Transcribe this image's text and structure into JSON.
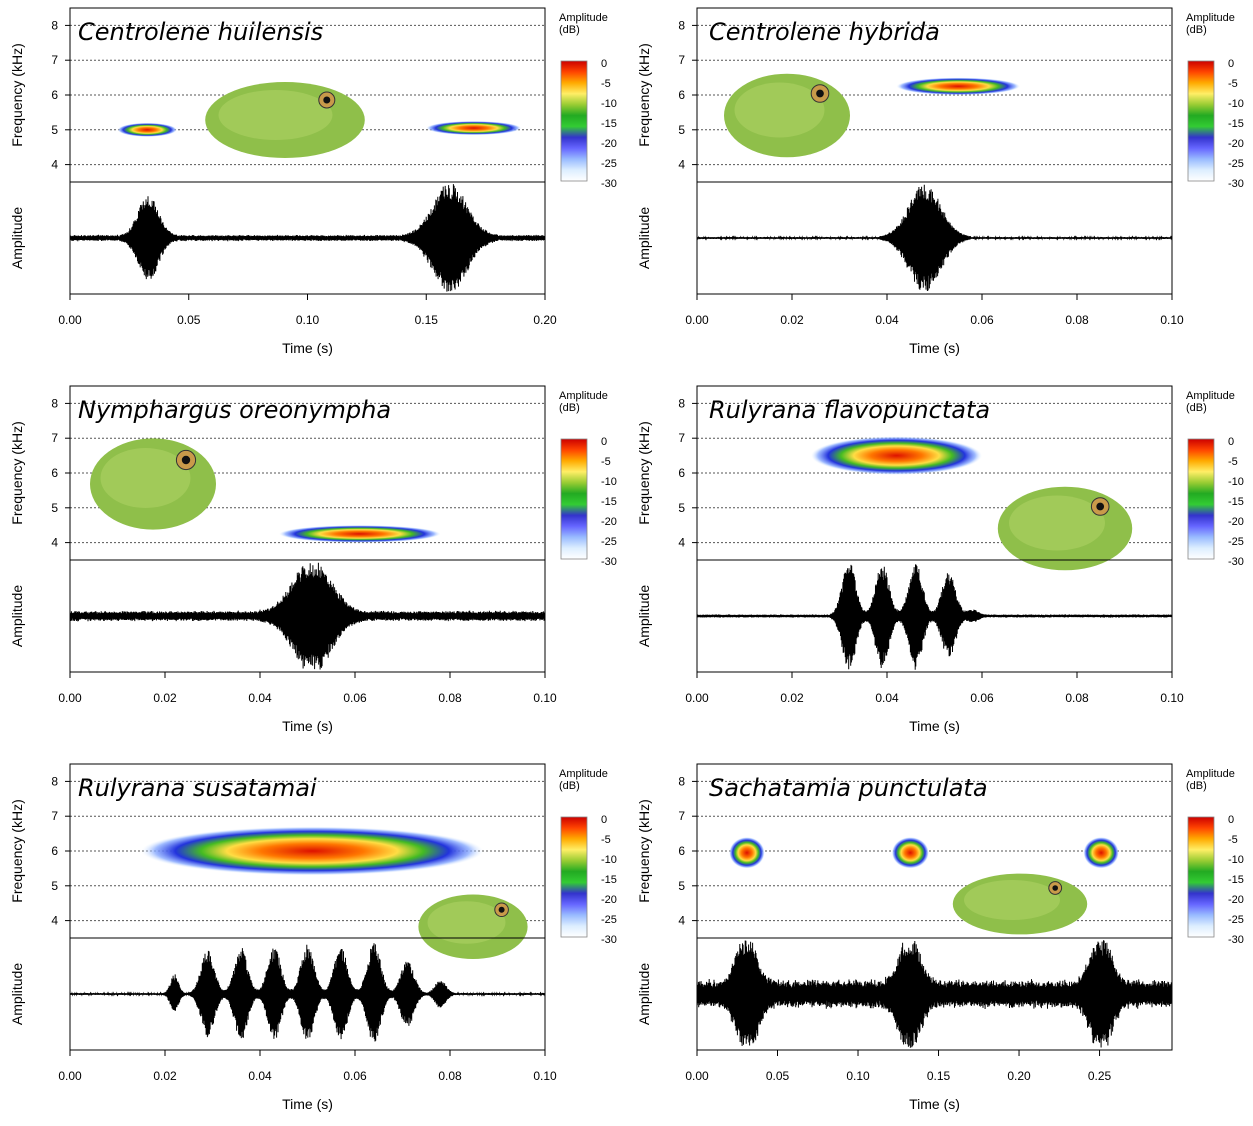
{
  "colorbar": {
    "title_line1": "Amplitude",
    "title_line2": "(dB)",
    "ticks": [
      "0",
      "-5",
      "-10",
      "-15",
      "-20",
      "-25",
      "-30"
    ],
    "colors": [
      "#cc0000",
      "#ff4400",
      "#ffaa00",
      "#ffee66",
      "#99cc33",
      "#22aa22",
      "#33cc33",
      "#3333cc",
      "#6666ff",
      "#99bbff",
      "#ddeeff",
      "#ffffff"
    ]
  },
  "axis_labels": {
    "frequency": "Frequency (kHz)",
    "amplitude": "Amplitude",
    "time": "Time (s)"
  },
  "chart_data": [
    {
      "type": "spectrogram",
      "title": "Centrolene huilensis",
      "title_color": "#000000",
      "ylim": [
        3.5,
        8.5
      ],
      "yticks": [
        "4",
        "5",
        "6",
        "7",
        "8"
      ],
      "xlim": [
        0,
        0.2
      ],
      "xticks": [
        "0.00",
        "0.05",
        "0.10",
        "0.15",
        "0.20"
      ],
      "calls": [
        {
          "t_start": 0.02,
          "t_end": 0.045,
          "freq_khz": 5.0,
          "bandwidth_khz": 0.4
        },
        {
          "t_start": 0.15,
          "t_end": 0.19,
          "freq_khz": 5.05,
          "bandwidth_khz": 0.4
        }
      ],
      "waveform_pulses": [
        {
          "t_center": 0.033,
          "duration": 0.015,
          "relative_amplitude": 0.75
        },
        {
          "t_center": 0.16,
          "duration": 0.025,
          "relative_amplitude": 1.0
        }
      ],
      "noise_level": 0.06,
      "photo": "frog-photo"
    },
    {
      "type": "spectrogram",
      "title": "Centrolene hybrida",
      "title_color": "#000000",
      "ylim": [
        3.5,
        8.5
      ],
      "yticks": [
        "4",
        "5",
        "6",
        "7",
        "8"
      ],
      "xlim": [
        0,
        0.1
      ],
      "xticks": [
        "0.00",
        "0.02",
        "0.04",
        "0.06",
        "0.08",
        "0.10"
      ],
      "calls": [
        {
          "t_start": 0.042,
          "t_end": 0.068,
          "freq_khz": 6.25,
          "bandwidth_khz": 0.5
        }
      ],
      "waveform_pulses": [
        {
          "t_center": 0.048,
          "duration": 0.012,
          "relative_amplitude": 1.0
        }
      ],
      "noise_level": 0.02,
      "photo": "frog-photo"
    },
    {
      "type": "spectrogram",
      "title": "Nymphargus oreonympha",
      "title_color": "#000000",
      "ylim": [
        3.5,
        8.5
      ],
      "yticks": [
        "4",
        "5",
        "6",
        "7",
        "8"
      ],
      "xlim": [
        0,
        0.1
      ],
      "xticks": [
        "0.00",
        "0.02",
        "0.04",
        "0.06",
        "0.08",
        "0.10"
      ],
      "calls": [
        {
          "t_start": 0.044,
          "t_end": 0.078,
          "freq_khz": 4.25,
          "bandwidth_khz": 0.5
        }
      ],
      "waveform_pulses": [
        {
          "t_center": 0.051,
          "duration": 0.014,
          "relative_amplitude": 1.0
        }
      ],
      "noise_level": 0.1,
      "photo": "frog-photo"
    },
    {
      "type": "spectrogram",
      "title": "Rulyrana flavopunctata",
      "title_color": "#000000",
      "ylim": [
        3.5,
        8.5
      ],
      "yticks": [
        "4",
        "5",
        "6",
        "7",
        "8"
      ],
      "xlim": [
        0,
        0.1
      ],
      "xticks": [
        "0.00",
        "0.02",
        "0.04",
        "0.06",
        "0.08",
        "0.10"
      ],
      "calls": [
        {
          "t_start": 0.024,
          "t_end": 0.06,
          "freq_khz": 6.5,
          "bandwidth_khz": 1.1
        }
      ],
      "waveform_pulses": [
        {
          "t_center": 0.032,
          "duration": 0.005,
          "relative_amplitude": 1.0
        },
        {
          "t_center": 0.039,
          "duration": 0.005,
          "relative_amplitude": 0.95
        },
        {
          "t_center": 0.046,
          "duration": 0.005,
          "relative_amplitude": 1.0
        },
        {
          "t_center": 0.053,
          "duration": 0.005,
          "relative_amplitude": 0.8
        },
        {
          "t_center": 0.058,
          "duration": 0.004,
          "relative_amplitude": 0.1
        }
      ],
      "noise_level": 0.03,
      "photo": "frog-photo"
    },
    {
      "type": "spectrogram",
      "title": "Rulyrana susatamai",
      "title_color": "#000000",
      "ylim": [
        3.5,
        8.5
      ],
      "yticks": [
        "4",
        "5",
        "6",
        "7",
        "8"
      ],
      "xlim": [
        0,
        0.1
      ],
      "xticks": [
        "0.00",
        "0.02",
        "0.04",
        "0.06",
        "0.08",
        "0.10"
      ],
      "calls": [
        {
          "t_start": 0.015,
          "t_end": 0.087,
          "freq_khz": 6.0,
          "bandwidth_khz": 1.4
        }
      ],
      "waveform_pulses": [
        {
          "t_center": 0.022,
          "duration": 0.003,
          "relative_amplitude": 0.35
        },
        {
          "t_center": 0.029,
          "duration": 0.005,
          "relative_amplitude": 0.8
        },
        {
          "t_center": 0.036,
          "duration": 0.005,
          "relative_amplitude": 0.85
        },
        {
          "t_center": 0.043,
          "duration": 0.005,
          "relative_amplitude": 0.85
        },
        {
          "t_center": 0.05,
          "duration": 0.005,
          "relative_amplitude": 0.9
        },
        {
          "t_center": 0.057,
          "duration": 0.005,
          "relative_amplitude": 0.85
        },
        {
          "t_center": 0.064,
          "duration": 0.005,
          "relative_amplitude": 0.95
        },
        {
          "t_center": 0.071,
          "duration": 0.005,
          "relative_amplitude": 0.6
        },
        {
          "t_center": 0.078,
          "duration": 0.004,
          "relative_amplitude": 0.25
        }
      ],
      "noise_level": 0.02,
      "photo": "frog-photo"
    },
    {
      "type": "spectrogram",
      "title": "Sachatamia punctulata",
      "title_color": "#1a2a6c",
      "ylim": [
        3.5,
        8.5
      ],
      "yticks": [
        "4",
        "5",
        "6",
        "7",
        "8"
      ],
      "xlim": [
        0,
        0.295
      ],
      "xticks": [
        "0.00",
        "0.05",
        "0.10",
        "0.15",
        "0.20",
        "0.25"
      ],
      "calls": [
        {
          "t_start": 0.02,
          "t_end": 0.042,
          "freq_khz": 5.95,
          "bandwidth_khz": 0.9
        },
        {
          "t_start": 0.121,
          "t_end": 0.144,
          "freq_khz": 5.95,
          "bandwidth_khz": 0.9
        },
        {
          "t_start": 0.24,
          "t_end": 0.262,
          "freq_khz": 5.95,
          "bandwidth_khz": 0.9
        }
      ],
      "waveform_pulses": [
        {
          "t_center": 0.031,
          "duration": 0.022,
          "relative_amplitude": 0.95
        },
        {
          "t_center": 0.132,
          "duration": 0.022,
          "relative_amplitude": 0.95
        },
        {
          "t_center": 0.251,
          "duration": 0.022,
          "relative_amplitude": 0.95
        }
      ],
      "noise_level": 0.28,
      "photo": "frog-photo"
    }
  ]
}
